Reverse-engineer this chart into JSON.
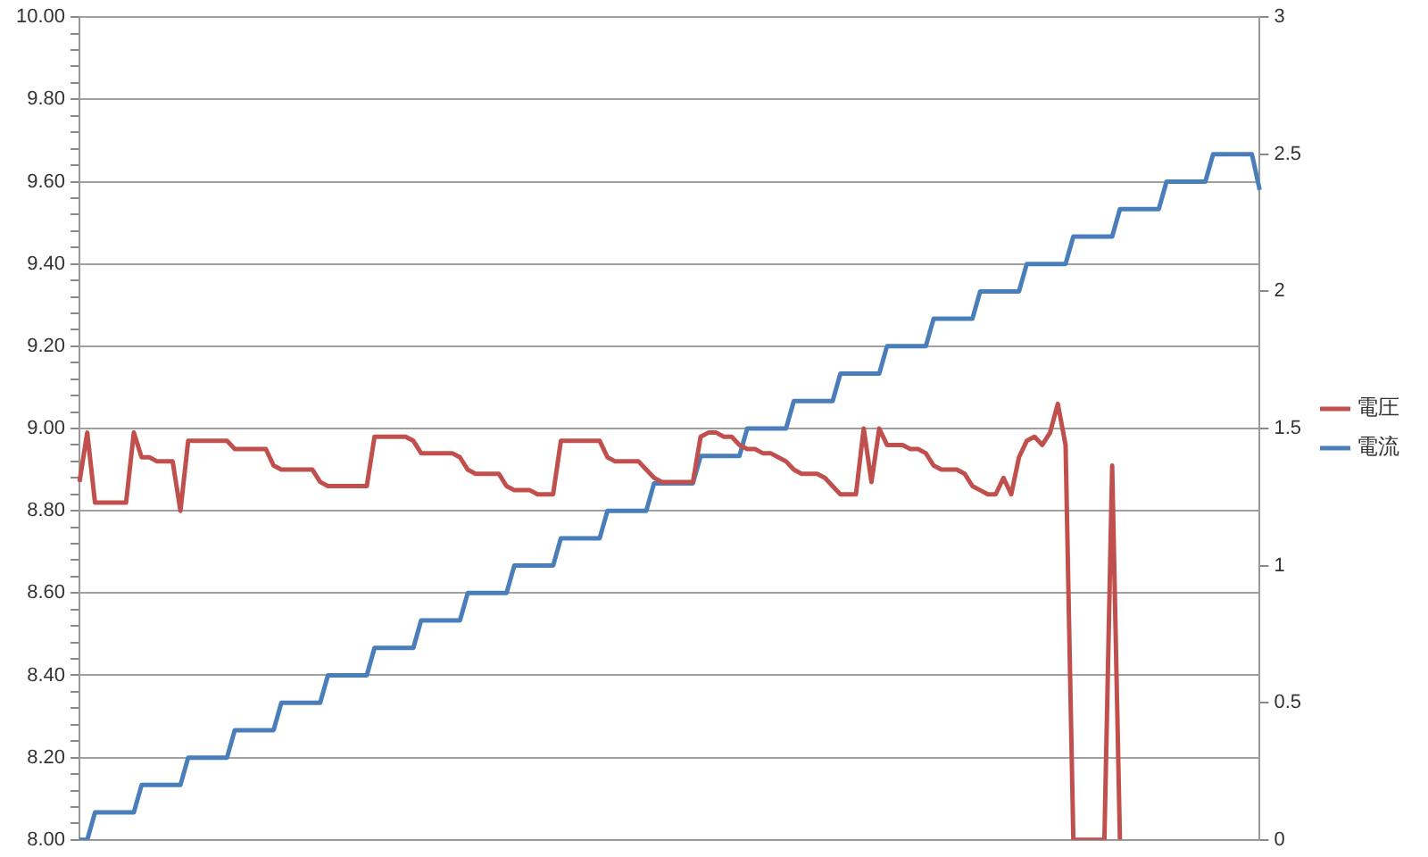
{
  "chart_data": {
    "type": "line",
    "categories": [
      null,
      null,
      null,
      null,
      null,
      null,
      null,
      null,
      null,
      null,
      null,
      null,
      null,
      null,
      null,
      null,
      null,
      null,
      null,
      null,
      null,
      null,
      null,
      null,
      null,
      null,
      null,
      null,
      null,
      null,
      null,
      null,
      null,
      null,
      null,
      null,
      null,
      null,
      null,
      null,
      null,
      null,
      null,
      null,
      null,
      null,
      null,
      null,
      null,
      null,
      null,
      null,
      null,
      null,
      null,
      null,
      null,
      null,
      null,
      null,
      null,
      null,
      null,
      null,
      null,
      null,
      null,
      null,
      null,
      null,
      null,
      null,
      null,
      null,
      null,
      null,
      null,
      null,
      null,
      null,
      null,
      null,
      null,
      null,
      null,
      null,
      null,
      null,
      null,
      null,
      null,
      null,
      null,
      null,
      null,
      null,
      null,
      null,
      null,
      null,
      null,
      null,
      null,
      null,
      null,
      null,
      null,
      null,
      null,
      null,
      null,
      null,
      null,
      null,
      null,
      null,
      null,
      null,
      null,
      null,
      null,
      null,
      null,
      null,
      null,
      null,
      null,
      null,
      null,
      null,
      null,
      null,
      null,
      null,
      null,
      null,
      null,
      null,
      null,
      null,
      null,
      null,
      null,
      null,
      null,
      null,
      null,
      null,
      null,
      null,
      null,
      null,
      null
    ],
    "series": [
      {
        "name": "電圧",
        "color": "#c0504d",
        "values": [
          8.87,
          8.99,
          8.82,
          8.82,
          8.82,
          8.82,
          8.82,
          8.99,
          8.93,
          8.93,
          8.92,
          8.92,
          8.92,
          8.8,
          8.97,
          8.97,
          8.97,
          8.97,
          8.97,
          8.97,
          8.95,
          8.95,
          8.95,
          8.95,
          8.95,
          8.91,
          8.9,
          8.9,
          8.9,
          8.9,
          8.9,
          8.87,
          8.86,
          8.86,
          8.86,
          8.86,
          8.86,
          8.86,
          8.98,
          8.98,
          8.98,
          8.98,
          8.98,
          8.97,
          8.94,
          8.94,
          8.94,
          8.94,
          8.94,
          8.93,
          8.9,
          8.89,
          8.89,
          8.89,
          8.89,
          8.86,
          8.85,
          8.85,
          8.85,
          8.84,
          8.84,
          8.84,
          8.97,
          8.97,
          8.97,
          8.97,
          8.97,
          8.97,
          8.93,
          8.92,
          8.92,
          8.92,
          8.92,
          8.9,
          8.88,
          8.87,
          8.87,
          8.87,
          8.87,
          8.87,
          8.98,
          8.99,
          8.99,
          8.98,
          8.98,
          8.96,
          8.95,
          8.95,
          8.94,
          8.94,
          8.93,
          8.92,
          8.9,
          8.89,
          8.89,
          8.89,
          8.88,
          8.86,
          8.84,
          8.84,
          8.84,
          9.0,
          8.87,
          9.0,
          8.96,
          8.96,
          8.96,
          8.95,
          8.95,
          8.94,
          8.91,
          8.9,
          8.9,
          8.9,
          8.89,
          8.86,
          8.85,
          8.84,
          8.84,
          8.88,
          8.84,
          8.93,
          8.97,
          8.98,
          8.96,
          8.99,
          9.06,
          8.96,
          8.0,
          8.0,
          8.0,
          8.0,
          8.0,
          8.91,
          8.0,
          null,
          null,
          null,
          null,
          null,
          null,
          null,
          null,
          null,
          null,
          null,
          null,
          null,
          null,
          null,
          null,
          null,
          null
        ]
      },
      {
        "name": "電流",
        "color": "#4a7ebb",
        "axis": "y2",
        "values": [
          0,
          0,
          0.1,
          0.1,
          0.1,
          0.1,
          0.1,
          0.1,
          0.2,
          0.2,
          0.2,
          0.2,
          0.2,
          0.2,
          0.3,
          0.3,
          0.3,
          0.3,
          0.3,
          0.3,
          0.4,
          0.4,
          0.4,
          0.4,
          0.4,
          0.4,
          0.5,
          0.5,
          0.5,
          0.5,
          0.5,
          0.5,
          0.6,
          0.6,
          0.6,
          0.6,
          0.6,
          0.6,
          0.7,
          0.7,
          0.7,
          0.7,
          0.7,
          0.7,
          0.8,
          0.8,
          0.8,
          0.8,
          0.8,
          0.8,
          0.9,
          0.9,
          0.9,
          0.9,
          0.9,
          0.9,
          1.0,
          1.0,
          1.0,
          1.0,
          1.0,
          1.0,
          1.1,
          1.1,
          1.1,
          1.1,
          1.1,
          1.1,
          1.2,
          1.2,
          1.2,
          1.2,
          1.2,
          1.2,
          1.3,
          1.3,
          1.3,
          1.3,
          1.3,
          1.3,
          1.4,
          1.4,
          1.4,
          1.4,
          1.4,
          1.4,
          1.5,
          1.5,
          1.5,
          1.5,
          1.5,
          1.5,
          1.6,
          1.6,
          1.6,
          1.6,
          1.6,
          1.6,
          1.7,
          1.7,
          1.7,
          1.7,
          1.7,
          1.7,
          1.8,
          1.8,
          1.8,
          1.8,
          1.8,
          1.8,
          1.9,
          1.9,
          1.9,
          1.9,
          1.9,
          1.9,
          2.0,
          2.0,
          2.0,
          2.0,
          2.0,
          2.0,
          2.1,
          2.1,
          2.1,
          2.1,
          2.1,
          2.1,
          2.2,
          2.2,
          2.2,
          2.2,
          2.2,
          2.2,
          2.3,
          2.3,
          2.3,
          2.3,
          2.3,
          2.3,
          2.4,
          2.4,
          2.4,
          2.4,
          2.4,
          2.4,
          2.5,
          2.5,
          2.5,
          2.5,
          2.5,
          2.5,
          2.37
        ]
      }
    ],
    "ylim": [
      8,
      10
    ],
    "yticks": [
      {
        "value": 8,
        "label": "8.00"
      },
      {
        "value": 8.04,
        "label": null
      },
      {
        "value": 8.08,
        "label": null
      },
      {
        "value": 8.12,
        "label": null
      },
      {
        "value": 8.16,
        "label": null
      },
      {
        "value": 8.2,
        "label": "8.20"
      },
      {
        "value": 8.24,
        "label": null
      },
      {
        "value": 8.28,
        "label": null
      },
      {
        "value": 8.32,
        "label": null
      },
      {
        "value": 8.36,
        "label": null
      },
      {
        "value": 8.4,
        "label": "8.40"
      },
      {
        "value": 8.44,
        "label": null
      },
      {
        "value": 8.48,
        "label": null
      },
      {
        "value": 8.52,
        "label": null
      },
      {
        "value": 8.56,
        "label": null
      },
      {
        "value": 8.6,
        "label": "8.60"
      },
      {
        "value": 8.64,
        "label": null
      },
      {
        "value": 8.68,
        "label": null
      },
      {
        "value": 8.72,
        "label": null
      },
      {
        "value": 8.76,
        "label": null
      },
      {
        "value": 8.8,
        "label": "8.80"
      },
      {
        "value": 8.84,
        "label": null
      },
      {
        "value": 8.88,
        "label": null
      },
      {
        "value": 8.92,
        "label": null
      },
      {
        "value": 8.96,
        "label": null
      },
      {
        "value": 9,
        "label": "9.00"
      },
      {
        "value": 9.04,
        "label": null
      },
      {
        "value": 9.08,
        "label": null
      },
      {
        "value": 9.12,
        "label": null
      },
      {
        "value": 9.16,
        "label": null
      },
      {
        "value": 9.2,
        "label": "9.20"
      },
      {
        "value": 9.24,
        "label": null
      },
      {
        "value": 9.28,
        "label": null
      },
      {
        "value": 9.32,
        "label": null
      },
      {
        "value": 9.36,
        "label": null
      },
      {
        "value": 9.4,
        "label": "9.40"
      },
      {
        "value": 9.44,
        "label": null
      },
      {
        "value": 9.48,
        "label": null
      },
      {
        "value": 9.52,
        "label": null
      },
      {
        "value": 9.56,
        "label": null
      },
      {
        "value": 9.6,
        "label": "9.60"
      },
      {
        "value": 9.64,
        "label": null
      },
      {
        "value": 9.68,
        "label": null
      },
      {
        "value": 9.72,
        "label": null
      },
      {
        "value": 9.76,
        "label": null
      },
      {
        "value": 9.8,
        "label": "9.80"
      },
      {
        "value": 9.84,
        "label": null
      },
      {
        "value": 9.88,
        "label": null
      },
      {
        "value": 9.92,
        "label": null
      },
      {
        "value": 9.96,
        "label": null
      },
      {
        "value": 10,
        "label": "10.00"
      }
    ],
    "y2lim": [
      0,
      3
    ],
    "y2ticks": [
      0,
      0.5,
      1,
      1.5,
      2,
      2.5,
      3
    ],
    "grid": "y",
    "legend": "right",
    "marker": "none",
    "line_style": "solid",
    "tick_labels": "y"
  }
}
